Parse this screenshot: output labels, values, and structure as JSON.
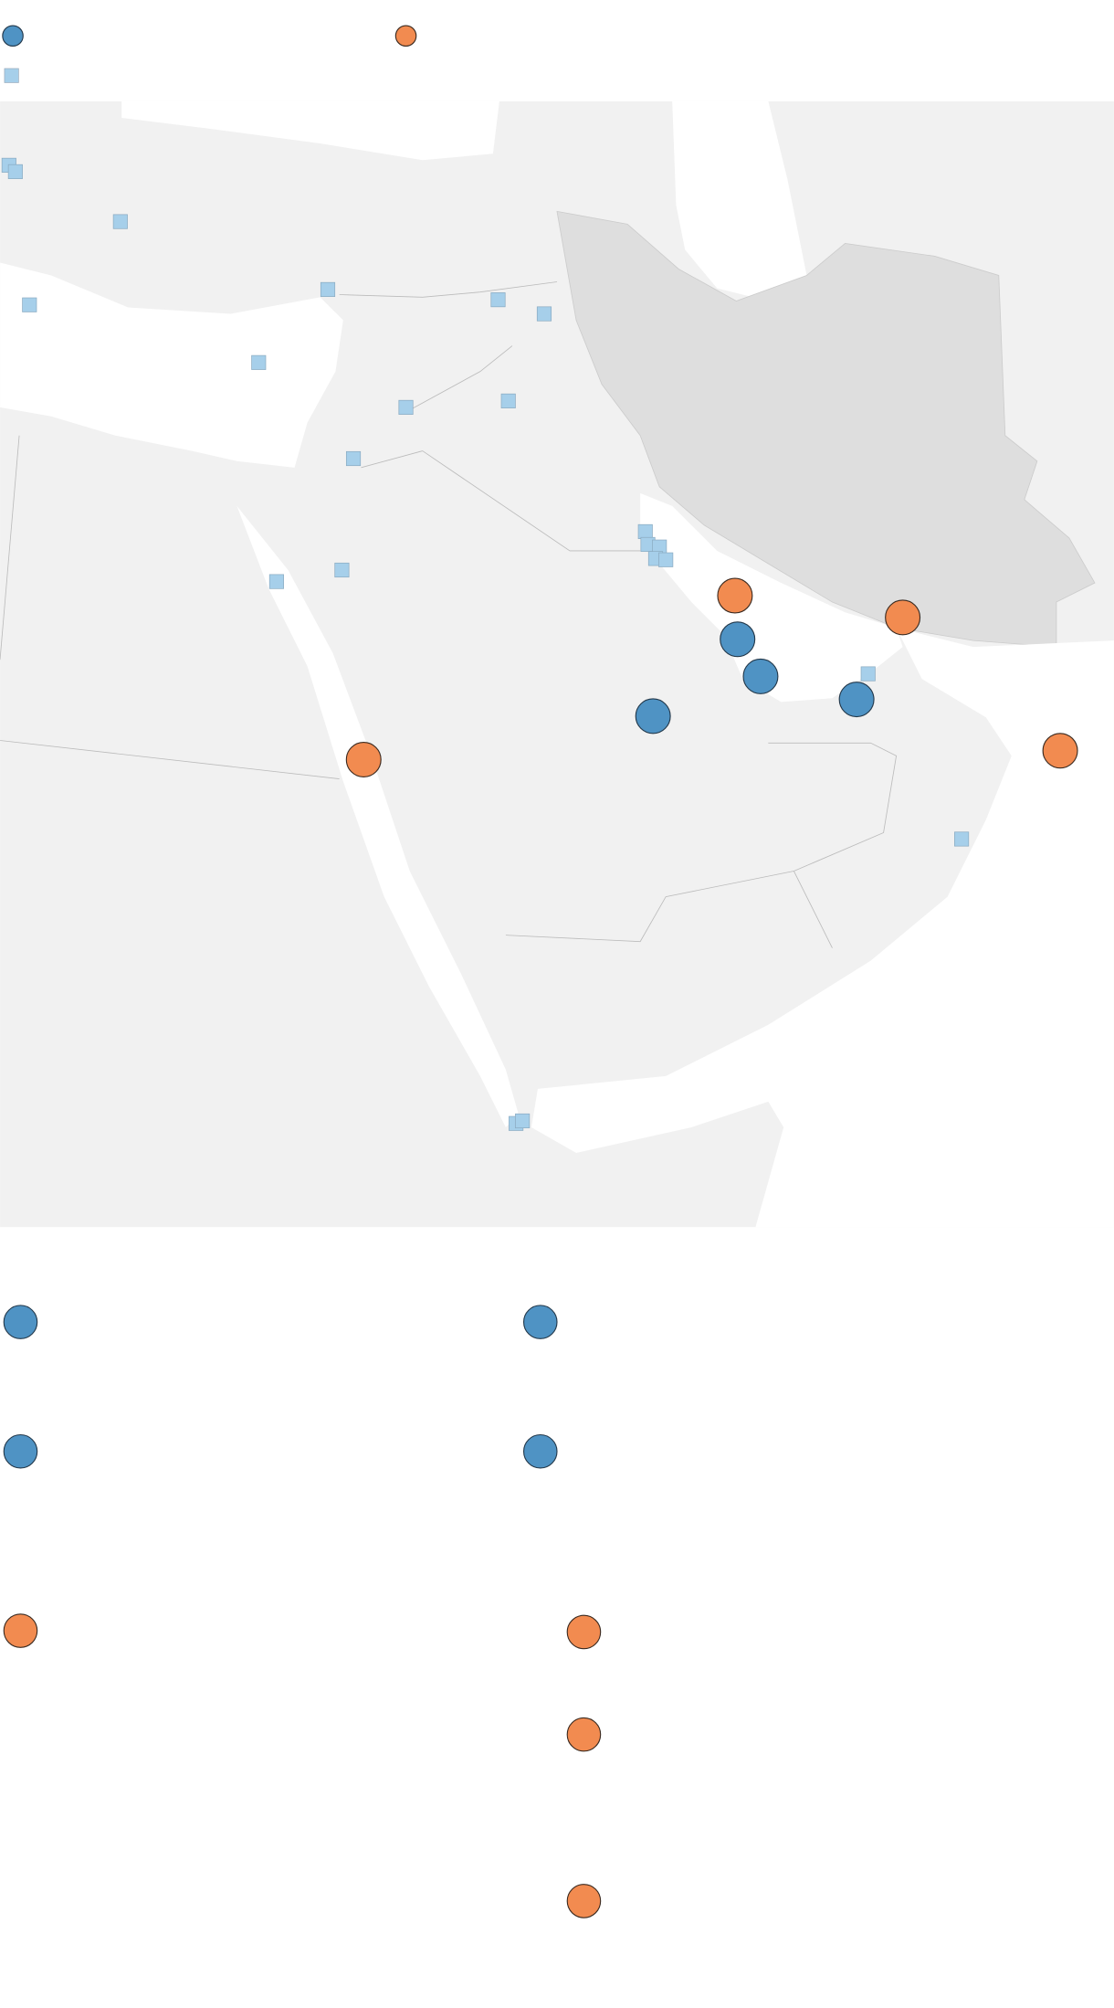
{
  "legend": {
    "items": [
      {
        "shape": "circle",
        "color": "#4f93c4"
      },
      {
        "shape": "circle",
        "color": "#f28b50"
      },
      {
        "shape": "square",
        "color": "#a6cfea"
      }
    ]
  },
  "colors": {
    "blue_marker": "#4f93c4",
    "orange_marker": "#f28b50",
    "square_marker": "#a6cfea",
    "land": "#f1f1f1",
    "highlighted_country": "#dedede",
    "water": "#ffffff"
  }
}
